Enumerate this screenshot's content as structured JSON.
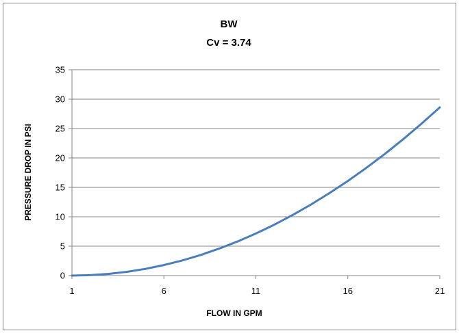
{
  "chart_data": {
    "type": "line",
    "title": "BW",
    "subtitle": "Cv = 3.74",
    "xlabel": "FLOW IN GPM",
    "ylabel": "PRESSURE DROP IN PSI",
    "xlim": [
      1,
      21
    ],
    "ylim": [
      0,
      35
    ],
    "x_ticks": [
      1,
      6,
      11,
      16,
      21
    ],
    "y_ticks": [
      0,
      5,
      10,
      15,
      20,
      25,
      30,
      35
    ],
    "grid": "horizontal",
    "legend": "none",
    "series": [
      {
        "color": "#4a7ebb",
        "x": [
          1,
          2,
          3,
          4,
          5,
          6,
          7,
          8,
          9,
          10,
          11,
          12,
          13,
          14,
          15,
          16,
          17,
          18,
          19,
          20,
          21
        ],
        "y": [
          0.0,
          0.07,
          0.29,
          0.64,
          1.14,
          1.79,
          2.57,
          3.5,
          4.58,
          5.79,
          7.15,
          8.65,
          10.3,
          12.09,
          14.02,
          16.09,
          18.3,
          20.66,
          23.16,
          25.81,
          28.6
        ]
      }
    ]
  }
}
